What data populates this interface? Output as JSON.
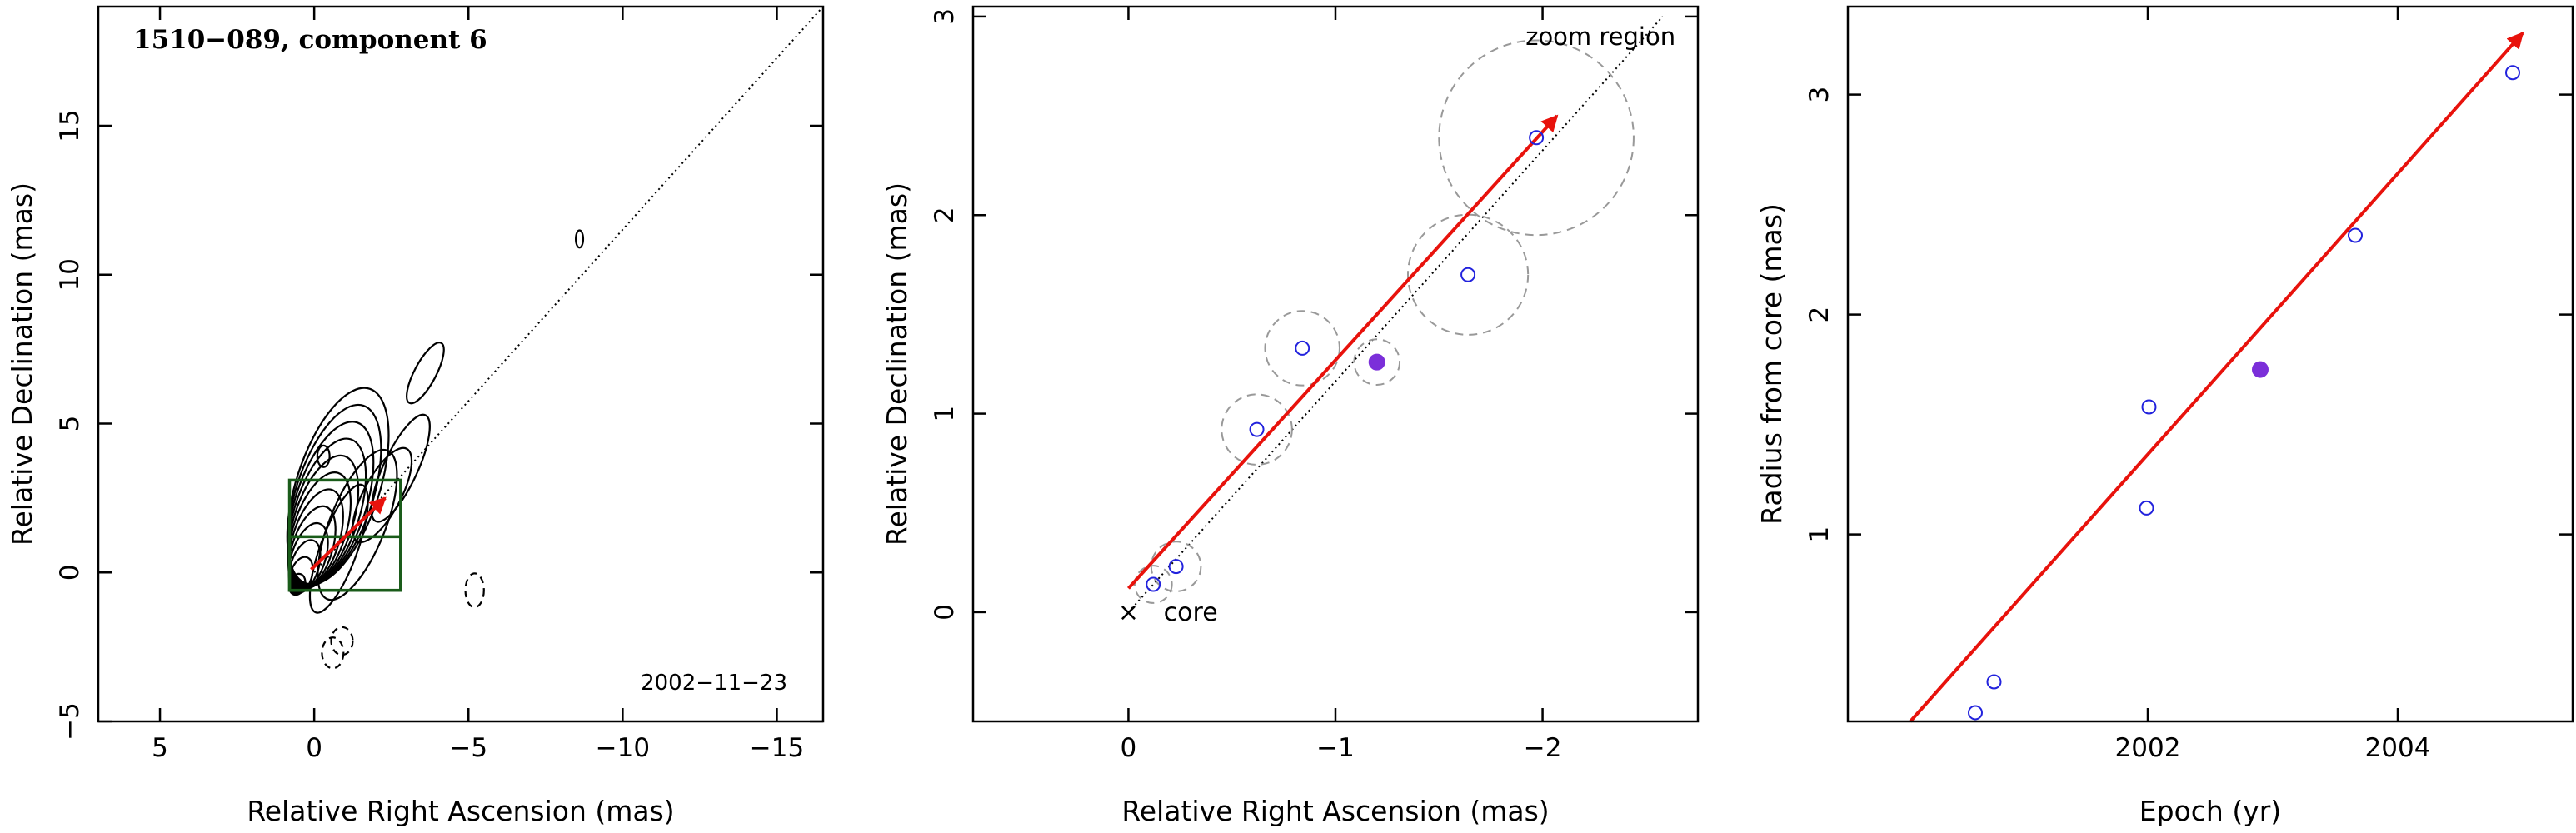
{
  "colors": {
    "axes": "#000000",
    "arrow": "#e8120c",
    "box": "#1a5c1a",
    "open_marker": "#2222dd",
    "filled_marker": "#7b2fd9",
    "error_circle": "#999999",
    "contour": "#000000"
  },
  "chart_data": [
    {
      "type": "contour",
      "title": "1510−089, component 6",
      "annotation": "2002−11−23",
      "xlabel": "Relative Right Ascension (mas)",
      "ylabel": "Relative Declination (mas)",
      "xlim": [
        7,
        -16.5
      ],
      "ylim": [
        -5,
        19
      ],
      "xticks": [
        5,
        0,
        -5,
        -10,
        -15
      ],
      "xtick_labels": [
        "5",
        "0",
        "−5",
        "−10",
        "−15"
      ],
      "yticks": [
        -5,
        0,
        5,
        10,
        15
      ],
      "ytick_labels": [
        "−5",
        "0",
        "5",
        "10",
        "15"
      ],
      "grid": false,
      "direction_line": {
        "x": [
          0,
          -16.5
        ],
        "y": [
          0,
          19
        ]
      },
      "motion_arrow": {
        "x": [
          0.1,
          -2.3
        ],
        "y": [
          0.1,
          2.5
        ]
      },
      "zoom_boxes": [
        {
          "x": [
            0.8,
            -2.8
          ],
          "y": [
            -0.6,
            3.1
          ]
        },
        {
          "x": [
            0.8,
            -2.8
          ],
          "y": [
            -0.6,
            1.2
          ]
        }
      ]
    },
    {
      "type": "scatter",
      "xlabel": "Relative Right Ascension (mas)",
      "ylabel": "Relative Declination (mas)",
      "xlim": [
        0.75,
        -2.75
      ],
      "ylim": [
        -0.55,
        3.05
      ],
      "xticks": [
        0,
        -1,
        -2
      ],
      "xtick_labels": [
        "0",
        "−1",
        "−2"
      ],
      "yticks": [
        0,
        1,
        2,
        3
      ],
      "ytick_labels": [
        "0",
        "1",
        "2",
        "3"
      ],
      "grid": false,
      "annotations": [
        {
          "text": "zoom region",
          "x": -2.28,
          "y": 2.9
        },
        {
          "text": "×",
          "x": 0.0,
          "y": 0.0
        },
        {
          "text": "core",
          "x": -0.18,
          "y": 0.0
        }
      ],
      "direction_line": {
        "x": [
          0,
          -2.58
        ],
        "y": [
          0,
          3.0
        ]
      },
      "motion_arrow": {
        "x": [
          0.0,
          -2.07
        ],
        "y": [
          0.12,
          2.5
        ]
      },
      "points": [
        {
          "x": -0.12,
          "y": 0.14,
          "filled": false,
          "error_radius": 0.09
        },
        {
          "x": -0.23,
          "y": 0.23,
          "filled": false,
          "error_radius": 0.12
        },
        {
          "x": -0.62,
          "y": 0.92,
          "filled": false,
          "error_radius": 0.17
        },
        {
          "x": -0.84,
          "y": 1.33,
          "filled": false,
          "error_radius": 0.18
        },
        {
          "x": -1.2,
          "y": 1.26,
          "filled": true,
          "error_radius": 0.11
        },
        {
          "x": -1.64,
          "y": 1.7,
          "filled": false,
          "error_radius": 0.29
        },
        {
          "x": -1.97,
          "y": 2.39,
          "filled": false,
          "error_radius": 0.47
        }
      ]
    },
    {
      "type": "scatter",
      "xlabel": "Epoch (yr)",
      "ylabel": "Radius from core (mas)",
      "xlim": [
        1999.6,
        2005.4
      ],
      "ylim": [
        0.15,
        3.4
      ],
      "xticks": [
        2002,
        2004
      ],
      "xtick_labels": [
        "2002",
        "2004"
      ],
      "yticks": [
        1,
        2,
        3
      ],
      "ytick_labels": [
        "1",
        "2",
        "3"
      ],
      "grid": false,
      "fit_arrow": {
        "x": [
          2000.1,
          2005.0
        ],
        "y": [
          0.15,
          3.28
        ]
      },
      "points": [
        {
          "x": 2000.62,
          "y": 0.19,
          "filled": false
        },
        {
          "x": 2000.77,
          "y": 0.33,
          "filled": false
        },
        {
          "x": 2001.99,
          "y": 1.12,
          "filled": false
        },
        {
          "x": 2002.01,
          "y": 1.58,
          "filled": false
        },
        {
          "x": 2002.9,
          "y": 1.75,
          "filled": true
        },
        {
          "x": 2003.66,
          "y": 2.36,
          "filled": false
        },
        {
          "x": 2004.92,
          "y": 3.1,
          "filled": false
        }
      ]
    }
  ]
}
